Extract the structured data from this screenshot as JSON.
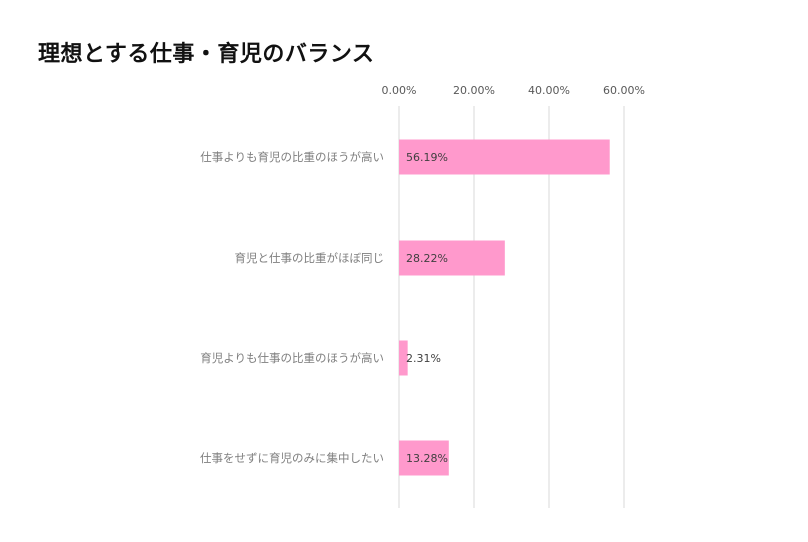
{
  "chart_data": {
    "type": "bar",
    "orientation": "horizontal",
    "title": "理想とする仕事・育児のバランス",
    "categories": [
      "仕事よりも育児の比重のほうが高い",
      "育児と仕事の比重がほぼ同じ",
      "育児よりも仕事の比重のほうが高い",
      "仕事をせずに育児のみに集中したい"
    ],
    "values": [
      56.19,
      28.22,
      2.31,
      13.28
    ],
    "value_labels": [
      "56.19%",
      "28.22%",
      "2.31%",
      "13.28%"
    ],
    "x_ticks": [
      0,
      20,
      40,
      60
    ],
    "x_tick_labels": [
      "0.00%",
      "20.00%",
      "40.00%",
      "60.00%"
    ],
    "xlim": [
      0,
      60
    ],
    "axis_position": "top",
    "grid": true,
    "bar_color": "#ff99cc",
    "grid_color": "#d9d9d9"
  }
}
